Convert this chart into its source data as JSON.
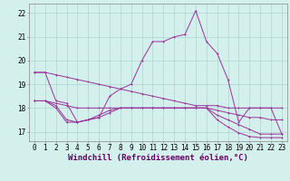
{
  "xlabel": "Windchill (Refroidissement éolien,°C)",
  "background_color": "#d4f0ec",
  "grid_color": "#aed4ce",
  "line_color": "#993399",
  "x_labels": [
    "0",
    "1",
    "2",
    "3",
    "4",
    "5",
    "6",
    "7",
    "8",
    "9",
    "10",
    "11",
    "12",
    "13",
    "14",
    "15",
    "16",
    "17",
    "18",
    "19",
    "20",
    "21",
    "22",
    "23"
  ],
  "ylim": [
    16.6,
    22.4
  ],
  "yticks": [
    17,
    18,
    19,
    20,
    21,
    22
  ],
  "series_top": [
    19.5,
    19.5,
    19.4,
    19.3,
    19.2,
    19.1,
    19.0,
    18.9,
    18.8,
    18.7,
    18.6,
    18.5,
    18.4,
    18.3,
    18.2,
    18.1,
    18.1,
    18.1,
    18.0,
    18.0,
    18.0,
    18.0,
    18.0,
    18.0
  ],
  "series_mid1": [
    18.3,
    18.3,
    18.2,
    18.1,
    18.0,
    18.0,
    18.0,
    18.0,
    18.0,
    18.0,
    18.0,
    18.0,
    18.0,
    18.0,
    18.0,
    18.0,
    18.0,
    17.9,
    17.8,
    17.7,
    17.6,
    17.6,
    17.5,
    17.5
  ],
  "series_mid2": [
    18.3,
    18.3,
    18.1,
    17.5,
    17.4,
    17.5,
    17.7,
    17.9,
    18.0,
    18.0,
    18.0,
    18.0,
    18.0,
    18.0,
    18.0,
    18.0,
    18.0,
    17.7,
    17.5,
    17.3,
    17.1,
    16.9,
    16.9,
    16.9
  ],
  "series_bot": [
    18.3,
    18.3,
    18.0,
    17.4,
    17.4,
    17.5,
    17.6,
    17.8,
    18.0,
    18.0,
    18.0,
    18.0,
    18.0,
    18.0,
    18.0,
    18.0,
    18.0,
    17.5,
    17.2,
    16.95,
    16.8,
    16.75,
    16.75,
    16.75
  ],
  "series_main": [
    19.5,
    19.5,
    18.3,
    18.2,
    17.4,
    17.5,
    17.6,
    18.5,
    18.8,
    19.0,
    20.0,
    20.8,
    20.8,
    21.0,
    21.1,
    22.1,
    20.8,
    20.3,
    19.2,
    17.4,
    18.0,
    18.0,
    18.0,
    16.9
  ],
  "tick_fontsize": 5.5,
  "xlabel_fontsize": 6.5
}
